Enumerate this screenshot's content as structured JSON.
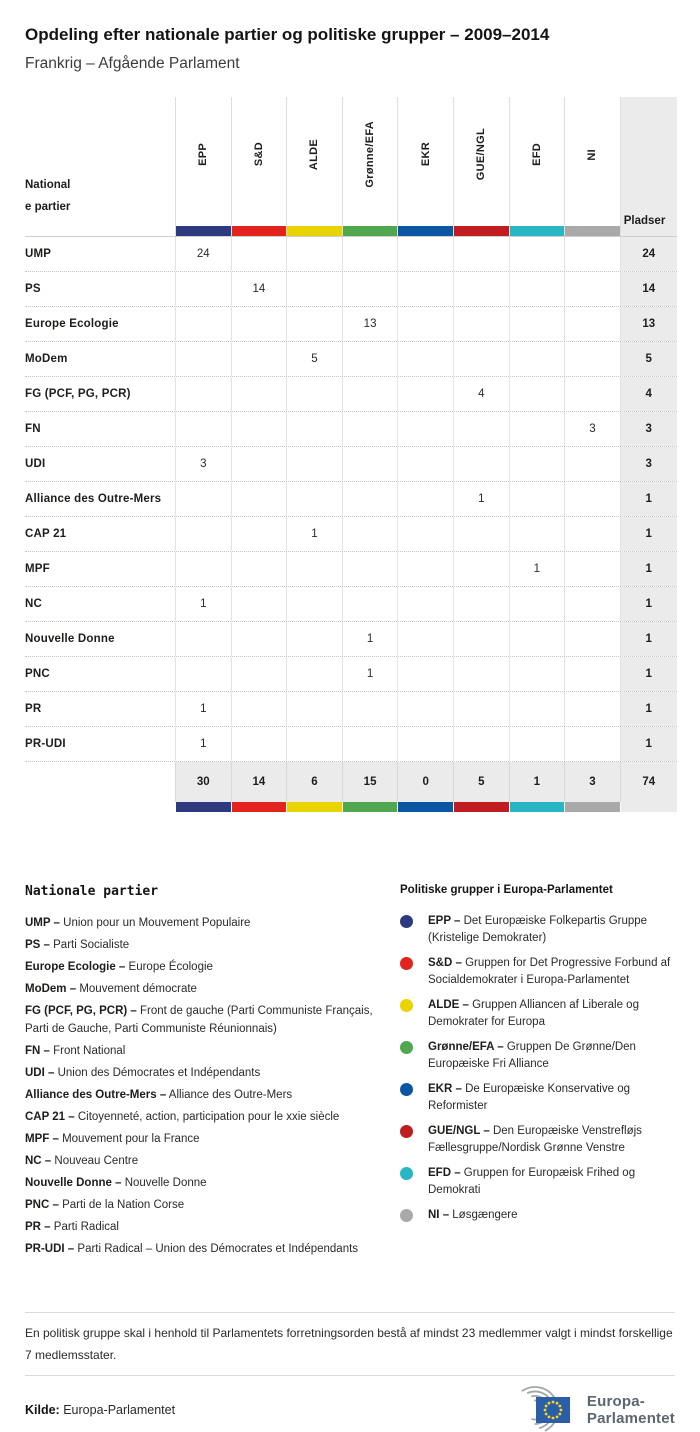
{
  "header": {
    "title": "Opdeling efter nationale partier og politiske grupper – 2009–2014",
    "subtitle": "Frankrig – Afgående Parlament"
  },
  "table": {
    "name_col_header_line1": "National",
    "name_col_header_line2": "e partier",
    "pladser_label": "Pladser",
    "groups": [
      {
        "label": "EPP",
        "color": "#2e3a80"
      },
      {
        "label": "S&D",
        "color": "#e2231e"
      },
      {
        "label": "ALDE",
        "color": "#e9d400"
      },
      {
        "label": "Grønne/EFA",
        "color": "#4fa84e"
      },
      {
        "label": "EKR",
        "color": "#0b56a3"
      },
      {
        "label": "GUE/NGL",
        "color": "#c01d20"
      },
      {
        "label": "EFD",
        "color": "#28b6c4"
      },
      {
        "label": "NI",
        "color": "#a9a9a9"
      }
    ],
    "rows": [
      {
        "name": "UMP",
        "values": [
          "24",
          "",
          "",
          "",
          "",
          "",
          "",
          ""
        ],
        "pladser": "24"
      },
      {
        "name": "PS",
        "values": [
          "",
          "14",
          "",
          "",
          "",
          "",
          "",
          ""
        ],
        "pladser": "14"
      },
      {
        "name": "Europe Ecologie",
        "values": [
          "",
          "",
          "",
          "13",
          "",
          "",
          "",
          ""
        ],
        "pladser": "13"
      },
      {
        "name": "MoDem",
        "values": [
          "",
          "",
          "5",
          "",
          "",
          "",
          "",
          ""
        ],
        "pladser": "5"
      },
      {
        "name": "FG (PCF, PG, PCR)",
        "values": [
          "",
          "",
          "",
          "",
          "",
          "4",
          "",
          ""
        ],
        "pladser": "4"
      },
      {
        "name": "FN",
        "values": [
          "",
          "",
          "",
          "",
          "",
          "",
          "",
          "3"
        ],
        "pladser": "3"
      },
      {
        "name": "UDI",
        "values": [
          "3",
          "",
          "",
          "",
          "",
          "",
          "",
          ""
        ],
        "pladser": "3"
      },
      {
        "name": "Alliance des Outre-Mers",
        "values": [
          "",
          "",
          "",
          "",
          "",
          "1",
          "",
          ""
        ],
        "pladser": "1"
      },
      {
        "name": "CAP 21",
        "values": [
          "",
          "",
          "1",
          "",
          "",
          "",
          "",
          ""
        ],
        "pladser": "1"
      },
      {
        "name": "MPF",
        "values": [
          "",
          "",
          "",
          "",
          "",
          "",
          "1",
          ""
        ],
        "pladser": "1"
      },
      {
        "name": "NC",
        "values": [
          "1",
          "",
          "",
          "",
          "",
          "",
          "",
          ""
        ],
        "pladser": "1"
      },
      {
        "name": "Nouvelle Donne",
        "values": [
          "",
          "",
          "",
          "1",
          "",
          "",
          "",
          ""
        ],
        "pladser": "1"
      },
      {
        "name": "PNC",
        "values": [
          "",
          "",
          "",
          "1",
          "",
          "",
          "",
          ""
        ],
        "pladser": "1"
      },
      {
        "name": "PR",
        "values": [
          "1",
          "",
          "",
          "",
          "",
          "",
          "",
          ""
        ],
        "pladser": "1"
      },
      {
        "name": "PR-UDI",
        "values": [
          "1",
          "",
          "",
          "",
          "",
          "",
          "",
          ""
        ],
        "pladser": "1"
      }
    ],
    "totals": {
      "values": [
        "30",
        "14",
        "6",
        "15",
        "0",
        "5",
        "1",
        "3"
      ],
      "pladser": "74"
    }
  },
  "legend_national": {
    "heading": "Nationale partier",
    "items": [
      {
        "abbr": "UMP –",
        "name": "Union pour un Mouvement Populaire"
      },
      {
        "abbr": "PS –",
        "name": "Parti Socialiste"
      },
      {
        "abbr": "Europe Ecologie –",
        "name": "Europe Écologie"
      },
      {
        "abbr": "MoDem –",
        "name": "Mouvement démocrate"
      },
      {
        "abbr": "FG (PCF, PG, PCR) –",
        "name": "Front de gauche (Parti Communiste Français, Parti de Gauche, Parti Communiste Réunionnais)"
      },
      {
        "abbr": "FN –",
        "name": "Front National"
      },
      {
        "abbr": "UDI –",
        "name": "Union des Démocrates et Indépendants"
      },
      {
        "abbr": "Alliance des Outre-Mers –",
        "name": "Alliance des Outre-Mers"
      },
      {
        "abbr": "CAP 21 –",
        "name": "Citoyenneté, action, participation pour le xxie siècle"
      },
      {
        "abbr": "MPF –",
        "name": "Mouvement pour la France"
      },
      {
        "abbr": "NC –",
        "name": "Nouveau Centre"
      },
      {
        "abbr": "Nouvelle Donne –",
        "name": "Nouvelle Donne"
      },
      {
        "abbr": "PNC –",
        "name": "Parti de la Nation Corse"
      },
      {
        "abbr": "PR –",
        "name": "Parti Radical"
      },
      {
        "abbr": "PR-UDI –",
        "name": "Parti Radical – Union des Démocrates et Indépendants"
      }
    ]
  },
  "legend_groups": {
    "heading": "Politiske grupper i Europa-Parlamentet",
    "items": [
      {
        "abbr": "EPP –",
        "name": "Det Europæiske Folkepartis Gruppe (Kristelige Demokrater)",
        "color": "#2e3a80"
      },
      {
        "abbr": "S&D –",
        "name": "Gruppen for Det Progressive Forbund af Socialdemokrater i Europa-Parlamentet",
        "color": "#e2231e"
      },
      {
        "abbr": "ALDE –",
        "name": "Gruppen Alliancen af Liberale og Demokrater for Europa",
        "color": "#e9d400"
      },
      {
        "abbr": "Grønne/EFA –",
        "name": "Gruppen De Grønne/Den Europæiske Fri Alliance",
        "color": "#4fa84e"
      },
      {
        "abbr": "EKR –",
        "name": "De Europæiske Konservative og Reformister",
        "color": "#0b56a3"
      },
      {
        "abbr": "GUE/NGL –",
        "name": "Den Europæiske Venstrefløjs Fællesgruppe/Nordisk Grønne Venstre",
        "color": "#c01d20"
      },
      {
        "abbr": "EFD –",
        "name": "Gruppen for Europæisk Frihed og Demokrati",
        "color": "#28b6c4"
      },
      {
        "abbr": "NI –",
        "name": "Løsgængere",
        "color": "#a9a9a9"
      }
    ]
  },
  "footer": {
    "note": "En politisk gruppe skal i henhold til Parlamentets forretningsorden bestå af mindst 23 medlemmer valgt i mindst forskellige 7 medlemsstater.",
    "source_label": "Kilde:",
    "source": "Europa-Parlamentet",
    "logo_line1": "Europa-",
    "logo_line2": "Parlamentet"
  },
  "chart_data": {
    "type": "table",
    "title": "Opdeling efter nationale partier og politiske grupper – 2009–2014",
    "subtitle": "Frankrig – Afgående Parlament",
    "columns": [
      "EPP",
      "S&D",
      "ALDE",
      "Grønne/EFA",
      "EKR",
      "GUE/NGL",
      "EFD",
      "NI",
      "Pladser"
    ],
    "rows": [
      [
        "UMP",
        24,
        null,
        null,
        null,
        null,
        null,
        null,
        null,
        24
      ],
      [
        "PS",
        null,
        14,
        null,
        null,
        null,
        null,
        null,
        null,
        14
      ],
      [
        "Europe Ecologie",
        null,
        null,
        null,
        13,
        null,
        null,
        null,
        null,
        13
      ],
      [
        "MoDem",
        null,
        null,
        5,
        null,
        null,
        null,
        null,
        null,
        5
      ],
      [
        "FG (PCF, PG, PCR)",
        null,
        null,
        null,
        null,
        null,
        4,
        null,
        null,
        4
      ],
      [
        "FN",
        null,
        null,
        null,
        null,
        null,
        null,
        null,
        3,
        3
      ],
      [
        "UDI",
        3,
        null,
        null,
        null,
        null,
        null,
        null,
        null,
        3
      ],
      [
        "Alliance des Outre-Mers",
        null,
        null,
        null,
        null,
        null,
        1,
        null,
        null,
        1
      ],
      [
        "CAP 21",
        null,
        null,
        1,
        null,
        null,
        null,
        null,
        null,
        1
      ],
      [
        "MPF",
        null,
        null,
        null,
        null,
        null,
        null,
        1,
        null,
        1
      ],
      [
        "NC",
        1,
        null,
        null,
        null,
        null,
        null,
        null,
        null,
        1
      ],
      [
        "Nouvelle Donne",
        null,
        null,
        null,
        1,
        null,
        null,
        null,
        null,
        1
      ],
      [
        "PNC",
        null,
        null,
        null,
        1,
        null,
        null,
        null,
        null,
        1
      ],
      [
        "PR",
        1,
        null,
        null,
        null,
        null,
        null,
        null,
        null,
        1
      ],
      [
        "PR-UDI",
        1,
        null,
        null,
        null,
        null,
        null,
        null,
        null,
        1
      ]
    ],
    "totals": [
      30,
      14,
      6,
      15,
      0,
      5,
      1,
      3,
      74
    ]
  }
}
